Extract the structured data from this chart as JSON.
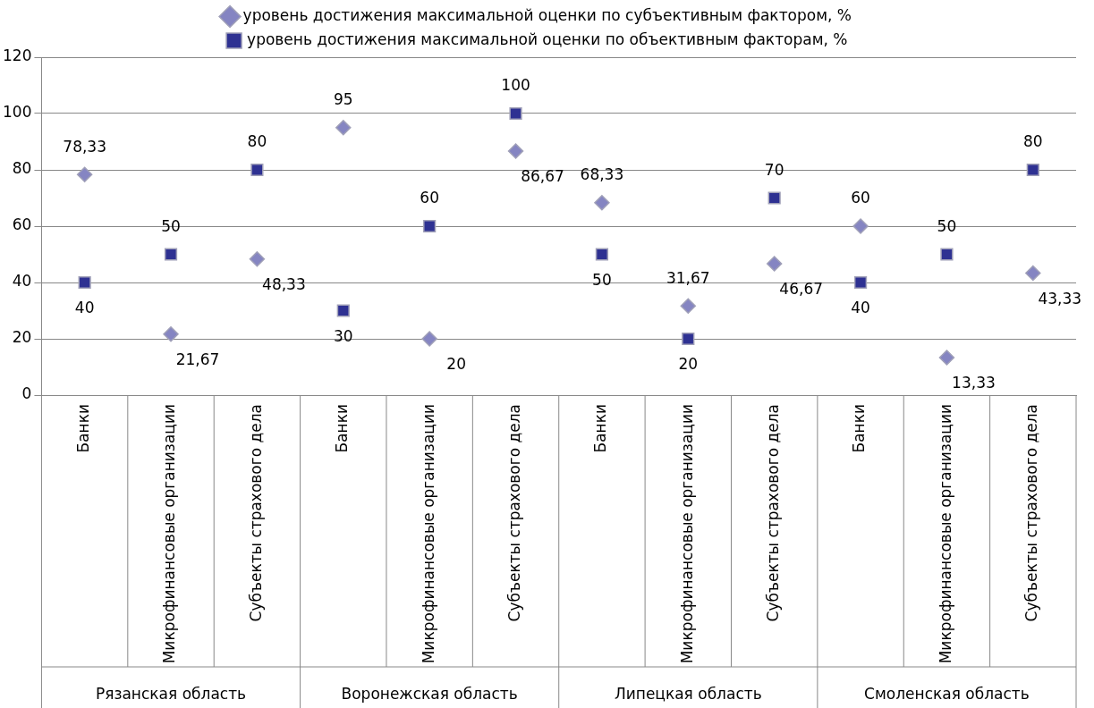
{
  "chart_data": {
    "type": "scatter",
    "categories": [
      "Банки",
      "Микрофинансовые организации",
      "Субъекты страхового дела",
      "Банки",
      "Микрофинансовые организации",
      "Субъекты страхового дела",
      "Банки",
      "Микрофинансовые организации",
      "Субъекты страхового дела",
      "Банки",
      "Микрофинансовые организации",
      "Субъекты страхового дела"
    ],
    "series": [
      {
        "name": "уровень достижения максимальной оценки по субъективным фактором, %",
        "color": "#8585c2",
        "marker": "diamond",
        "values": [
          78.33,
          21.67,
          48.33,
          95,
          20,
          86.67,
          68.33,
          31.67,
          46.67,
          60,
          13.33,
          43.33
        ],
        "value_labels": [
          "78,33",
          "21,67",
          "48,33",
          "95",
          "20",
          "86,67",
          "68,33",
          "31,67",
          "46,67",
          "60",
          "13,33",
          "43,33"
        ]
      },
      {
        "name": "уровень достижения максимальной оценки по объективным факторам, %",
        "color": "#2e3192",
        "marker": "square",
        "values": [
          40,
          50,
          80,
          30,
          60,
          100,
          50,
          20,
          70,
          40,
          50,
          80
        ],
        "value_labels": [
          "40",
          "50",
          "80",
          "30",
          "60",
          "100",
          "50",
          "20",
          "70",
          "40",
          "50",
          "80"
        ]
      }
    ],
    "annotations": [
      "Рязанская область",
      "Воронежская область",
      "Липецкая область",
      "Смоленская область"
    ],
    "ylim": [
      0,
      120
    ],
    "yticks": [
      0,
      20,
      40,
      60,
      80,
      100,
      120
    ],
    "grid": "y",
    "legend": "top"
  }
}
